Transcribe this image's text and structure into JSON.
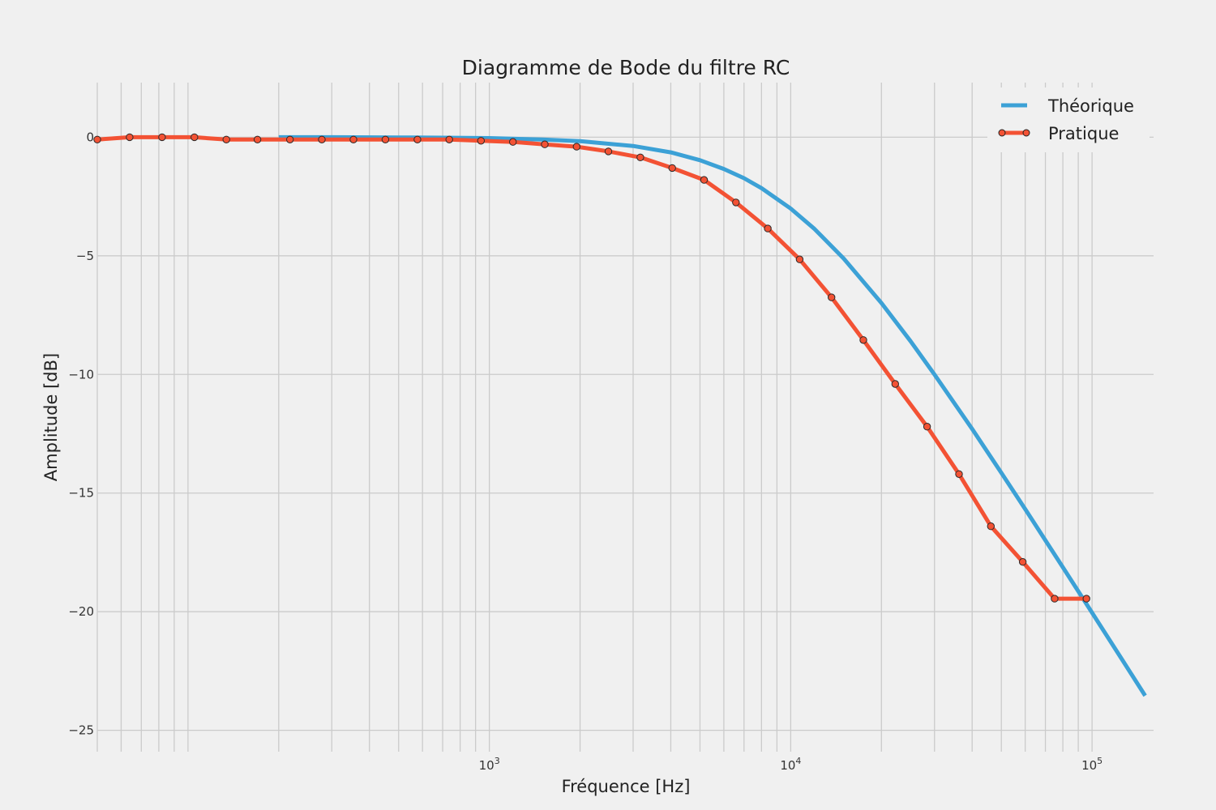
{
  "chart_data": {
    "type": "line",
    "title": "Diagramme de Bode du filtre RC",
    "xlabel": "Fréquence [Hz]",
    "ylabel": "Amplitude [dB]",
    "xscale": "log",
    "xlim": [
      50,
      160000
    ],
    "ylim": [
      -25.9,
      2.3
    ],
    "grid": true,
    "grid_minor_x": true,
    "legend_position": "top-right",
    "x_ticks": [
      {
        "value": 1000,
        "base": "10",
        "exp": "3"
      },
      {
        "value": 10000,
        "base": "10",
        "exp": "4"
      },
      {
        "value": 100000,
        "base": "10",
        "exp": "5"
      }
    ],
    "y_ticks": [
      {
        "value": 0,
        "label": "0"
      },
      {
        "value": -5,
        "label": "−5"
      },
      {
        "value": -10,
        "label": "−10"
      },
      {
        "value": -15,
        "label": "−15"
      },
      {
        "value": -20,
        "label": "−20"
      },
      {
        "value": -25,
        "label": "−25"
      }
    ],
    "series": [
      {
        "name": "Théorique",
        "color": "#3ca1d6",
        "style": "line",
        "cutoff_hz": 10000,
        "x": [
          200,
          300,
          500,
          700,
          1000,
          1500,
          2000,
          3000,
          4000,
          5000,
          6000,
          7000,
          8000,
          10000,
          12000,
          15000,
          20000,
          25000,
          30000,
          40000,
          50000,
          60000,
          70000,
          80000,
          100000,
          125000,
          150000
        ],
        "y": [
          0.0,
          0.0,
          -0.01,
          -0.02,
          -0.04,
          -0.1,
          -0.17,
          -0.37,
          -0.64,
          -0.97,
          -1.34,
          -1.73,
          -2.15,
          -3.01,
          -3.87,
          -5.12,
          -6.99,
          -8.6,
          -10.0,
          -12.3,
          -14.15,
          -15.68,
          -16.99,
          -18.13,
          -20.04,
          -21.96,
          -23.54
        ]
      },
      {
        "name": "Pratique",
        "color": "#f35234",
        "style": "line-marker",
        "x": [
          50,
          64,
          82,
          105,
          134,
          170,
          218,
          278,
          354,
          452,
          577,
          736,
          938,
          1197,
          1527,
          1948,
          2484,
          3170,
          4043,
          5158,
          6580,
          8393,
          10707,
          13658,
          17424,
          22227,
          28354,
          36172,
          46144,
          58865,
          75092,
          95794
        ],
        "y": [
          -0.1,
          0.0,
          0.0,
          0.0,
          -0.1,
          -0.1,
          -0.1,
          -0.1,
          -0.1,
          -0.1,
          -0.1,
          -0.1,
          -0.15,
          -0.2,
          -0.3,
          -0.4,
          -0.6,
          -0.85,
          -1.3,
          -1.8,
          -2.75,
          -3.85,
          -5.15,
          -6.75,
          -8.55,
          -10.4,
          -12.2,
          -14.2,
          -16.4,
          -17.9,
          -19.45,
          -19.45
        ]
      }
    ]
  }
}
